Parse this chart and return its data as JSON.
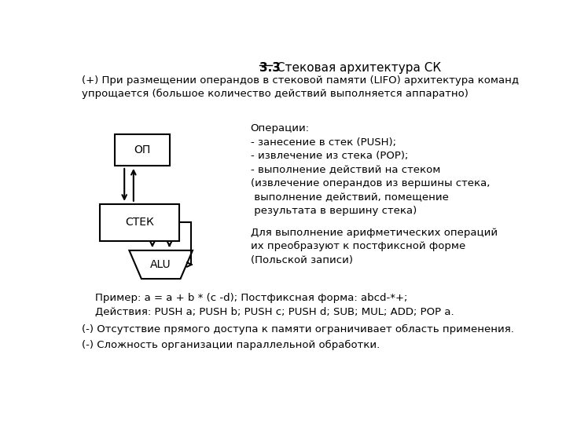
{
  "title_bold": "3.3",
  "title_rest": " Стековая архитектура СК",
  "subtitle": "(+) При размещении операндов в стековой памяти (LIFO) архитектура команд\nупрощается (большое количество действий выполняется аппаратно)",
  "op_label": "ОП",
  "stek_label": "СТЕК",
  "alu_label": "ALU",
  "operations_text": "Операции:\n- занесение в стек (PUSH);\n- извлечение из стека (POP);\n- выполнение действий на стеком\n(извлечение операндов из вершины стека,\n выполнение действий, помещение\n результата в вершину стека)",
  "postfix_text": "Для выполнение арифметических операций\nих преобразуют к постфиксной форме\n(Польской записи)",
  "example_text": "    Пример: a = a + b * (c -d); Постфиксная форма: abcd-*+;\n    Действия: PUSH a; PUSH b; PUSH c; PUSH d; SUB; MUL; ADD; POP a.",
  "minus1_text": "(-) Отсутствие прямого доступа к памяти ограничивает область применения.",
  "minus2_text": "(-) Сложность организации параллельной обработки.",
  "bg_color": "#ffffff",
  "text_color": "#000000",
  "box_color": "#000000",
  "fontsize_title": 11,
  "fontsize_body": 9.5
}
